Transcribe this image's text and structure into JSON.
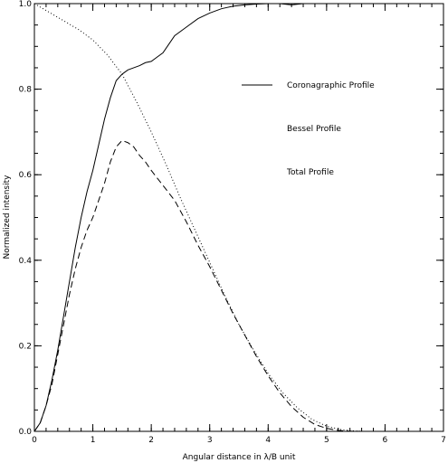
{
  "chart_data": {
    "type": "line",
    "title": "",
    "xlabel": "Angular distance in λ/B unit",
    "ylabel": "Normalized intensity",
    "xlim": [
      0,
      7
    ],
    "ylim": [
      0.0,
      1.0
    ],
    "x_ticks": [
      "0",
      "1",
      "2",
      "3",
      "4",
      "5",
      "6",
      "7"
    ],
    "y_ticks": [
      "0.0",
      "0.2",
      "0.4",
      "0.6",
      "0.8",
      "1.0"
    ],
    "grid": false,
    "legend_position": "right, upper-middle",
    "series": [
      {
        "name": "Coronagraphic Profile",
        "style": "solid",
        "x": [
          0,
          0.1,
          0.2,
          0.3,
          0.4,
          0.5,
          0.6,
          0.7,
          0.8,
          0.9,
          1.0,
          1.1,
          1.2,
          1.3,
          1.4,
          1.5,
          1.6,
          1.7,
          1.8,
          1.9,
          2.0,
          2.1,
          2.2,
          2.3,
          2.4,
          2.6,
          2.8,
          3.0,
          3.2,
          3.4,
          3.6,
          3.8,
          4.0,
          4.2,
          4.4,
          4.6,
          4.8
        ],
        "y": [
          0.0,
          0.02,
          0.06,
          0.12,
          0.19,
          0.27,
          0.35,
          0.43,
          0.5,
          0.56,
          0.61,
          0.67,
          0.73,
          0.78,
          0.82,
          0.835,
          0.845,
          0.85,
          0.855,
          0.862,
          0.865,
          0.875,
          0.885,
          0.905,
          0.925,
          0.945,
          0.965,
          0.978,
          0.988,
          0.994,
          0.997,
          0.999,
          1.0,
          1.0,
          0.997,
          1.0,
          1.0
        ]
      },
      {
        "name": "Bessel Profile",
        "style": "dotted",
        "x": [
          0,
          0.25,
          0.5,
          0.75,
          1.0,
          1.25,
          1.5,
          1.75,
          2.0,
          2.25,
          2.5,
          2.75,
          3.0,
          3.25,
          3.5,
          3.75,
          4.0,
          4.25,
          4.5,
          4.75,
          5.0,
          5.25,
          5.5,
          5.6
        ],
        "y": [
          1.0,
          0.98,
          0.96,
          0.94,
          0.915,
          0.88,
          0.835,
          0.77,
          0.7,
          0.625,
          0.545,
          0.47,
          0.395,
          0.32,
          0.25,
          0.19,
          0.135,
          0.09,
          0.055,
          0.028,
          0.012,
          0.004,
          0.0005,
          0.0
        ]
      },
      {
        "name": "Total Profile",
        "style": "dashed",
        "x": [
          0,
          0.1,
          0.2,
          0.3,
          0.4,
          0.5,
          0.6,
          0.7,
          0.8,
          0.9,
          1.0,
          1.1,
          1.2,
          1.3,
          1.4,
          1.5,
          1.6,
          1.7,
          1.8,
          1.9,
          2.0,
          2.2,
          2.4,
          2.6,
          2.8,
          3.0,
          3.2,
          3.4,
          3.6,
          3.8,
          4.0,
          4.2,
          4.4,
          4.6,
          4.8,
          5.0,
          5.2,
          5.4,
          5.6
        ],
        "y": [
          0.0,
          0.02,
          0.06,
          0.11,
          0.18,
          0.25,
          0.32,
          0.38,
          0.43,
          0.47,
          0.5,
          0.54,
          0.58,
          0.63,
          0.665,
          0.68,
          0.675,
          0.665,
          0.645,
          0.63,
          0.61,
          0.575,
          0.54,
          0.49,
          0.435,
          0.385,
          0.33,
          0.275,
          0.225,
          0.175,
          0.13,
          0.09,
          0.058,
          0.033,
          0.016,
          0.007,
          0.002,
          0.0005,
          0.0
        ]
      }
    ]
  }
}
